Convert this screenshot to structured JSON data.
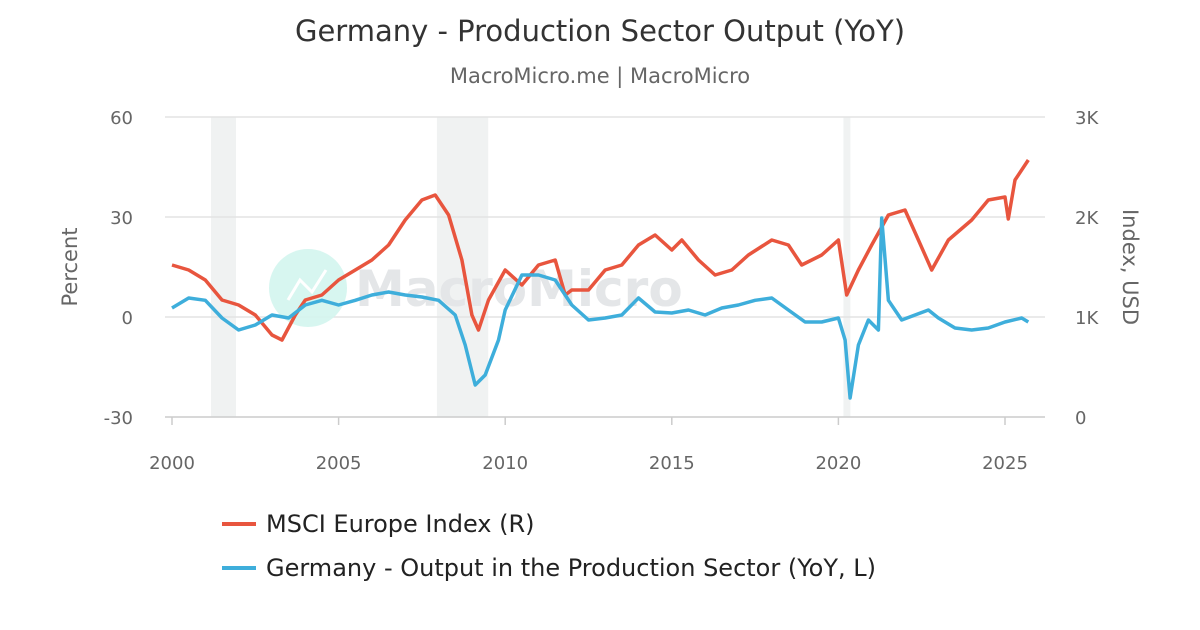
{
  "chart_data": {
    "type": "line",
    "title": "Germany - Production Sector Output (YoY)",
    "subtitle": "MacroMicro.me | MacroMicro",
    "watermark": "MacroMicro",
    "xlabel": "",
    "ylabel_left": "Percent",
    "ylabel_right": "Index, USD",
    "xlim": [
      2000,
      2026.1
    ],
    "ylim_left": [
      -30,
      60
    ],
    "ylim_right": [
      0,
      3000
    ],
    "x_ticks": [
      "2000",
      "2005",
      "2010",
      "2015",
      "2020",
      "2025"
    ],
    "y_ticks_left": [
      "60",
      "30",
      "0",
      "-30"
    ],
    "y_ticks_right": [
      "3K",
      "2K",
      "1K",
      "0"
    ],
    "grid": true,
    "legend_position": "bottom",
    "recession_bands": [
      [
        2001.17,
        2001.92
      ],
      [
        2007.95,
        2009.49
      ],
      [
        2020.15,
        2020.36
      ]
    ],
    "series": [
      {
        "name": "MSCI Europe Index (R)",
        "axis": "right",
        "color": "#e8553e",
        "x": [
          2000.0,
          2000.5,
          2001.0,
          2001.5,
          2002.0,
          2002.5,
          2003.0,
          2003.3,
          2003.7,
          2004.0,
          2004.5,
          2005.0,
          2005.5,
          2006.0,
          2006.5,
          2007.0,
          2007.5,
          2007.9,
          2008.3,
          2008.7,
          2009.0,
          2009.2,
          2009.5,
          2010.0,
          2010.5,
          2011.0,
          2011.5,
          2011.8,
          2012.0,
          2012.5,
          2013.0,
          2013.5,
          2014.0,
          2014.5,
          2015.0,
          2015.3,
          2015.8,
          2016.3,
          2016.8,
          2017.3,
          2018.0,
          2018.5,
          2018.9,
          2019.5,
          2020.0,
          2020.25,
          2020.6,
          2021.0,
          2021.5,
          2022.0,
          2022.4,
          2022.8,
          2023.3,
          2024.0,
          2024.5,
          2025.0,
          2025.1,
          2025.3,
          2025.7
        ],
        "y": [
          1520,
          1470,
          1370,
          1170,
          1120,
          1020,
          820,
          770,
          1020,
          1170,
          1220,
          1370,
          1470,
          1570,
          1720,
          1970,
          2170,
          2220,
          2020,
          1570,
          1020,
          870,
          1170,
          1470,
          1320,
          1520,
          1570,
          1220,
          1270,
          1270,
          1470,
          1520,
          1720,
          1820,
          1670,
          1770,
          1570,
          1420,
          1470,
          1620,
          1770,
          1720,
          1520,
          1620,
          1770,
          1220,
          1470,
          1720,
          2020,
          2070,
          1770,
          1470,
          1770,
          1970,
          2170,
          2200,
          1980,
          2370,
          2570
        ]
      },
      {
        "name": "Germany - Output in the Production Sector (YoY, L)",
        "axis": "left",
        "color": "#3eaedb",
        "x": [
          2000.0,
          2000.5,
          2001.0,
          2001.5,
          2002.0,
          2002.5,
          2003.0,
          2003.5,
          2004.0,
          2004.5,
          2005.0,
          2005.5,
          2006.0,
          2006.5,
          2007.0,
          2007.5,
          2008.0,
          2008.5,
          2008.8,
          2009.1,
          2009.4,
          2009.8,
          2010.0,
          2010.5,
          2011.0,
          2011.5,
          2012.0,
          2012.5,
          2013.0,
          2013.5,
          2014.0,
          2014.5,
          2015.0,
          2015.5,
          2016.0,
          2016.5,
          2017.0,
          2017.5,
          2018.0,
          2018.5,
          2019.0,
          2019.5,
          2020.0,
          2020.2,
          2020.35,
          2020.6,
          2020.9,
          2021.2,
          2021.3,
          2021.5,
          2021.9,
          2022.3,
          2022.7,
          2023.0,
          2023.5,
          2024.0,
          2024.5,
          2025.0,
          2025.5,
          2025.7
        ],
        "y": [
          2.7,
          5.7,
          5.0,
          -0.3,
          -3.9,
          -2.4,
          0.6,
          -0.3,
          3.6,
          5.0,
          3.6,
          5.0,
          6.6,
          7.5,
          6.6,
          6.0,
          5.0,
          0.6,
          -8.4,
          -20.4,
          -17.4,
          -6.9,
          2.1,
          12.6,
          12.6,
          11.1,
          3.6,
          -0.9,
          -0.3,
          0.6,
          5.7,
          1.5,
          1.2,
          2.1,
          0.6,
          2.7,
          3.6,
          5.0,
          5.7,
          2.1,
          -1.5,
          -1.5,
          -0.3,
          -6.9,
          -24.3,
          -8.4,
          -0.9,
          -3.9,
          29.7,
          5.0,
          -0.9,
          0.6,
          2.1,
          -0.3,
          -3.3,
          -3.9,
          -3.3,
          -1.5,
          -0.3,
          -1.5
        ]
      }
    ]
  }
}
